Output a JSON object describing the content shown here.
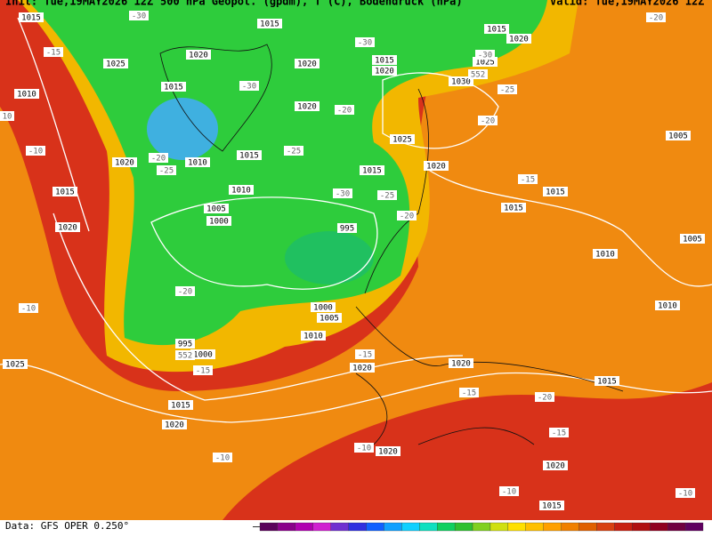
{
  "header": {
    "init": "Init: Tue,19MAY2026 12Z",
    "title": "500 hPa Geopot. (gpdm), T (C), Bodendruck (hPa)",
    "valid": "Valid: Tue,19MAY2026 12Z"
  },
  "footer": {
    "source": "Data: GFS OPER 0.250°"
  },
  "isobar_labels": [
    "1015",
    "1015",
    "1025",
    "1020",
    "1020",
    "1015",
    "1010",
    "1020",
    "1015",
    "1020",
    "1025",
    "1015",
    "1020",
    "1030",
    "1025",
    "1020",
    "1010",
    "1015",
    "1015",
    "1020",
    "1015",
    "1010",
    "1005",
    "1000",
    "995",
    "1020",
    "1015",
    "1015",
    "1010",
    "1005",
    "1005",
    "1010",
    "1000",
    "1005",
    "1010",
    "995",
    "1000",
    "1025",
    "1020",
    "1020",
    "1015",
    "1015",
    "1020",
    "1020",
    "1020",
    "1015"
  ],
  "temperature_labels": [
    "-30",
    "-20",
    "-15",
    "-30",
    "-30",
    "-25",
    "-20",
    "-20",
    "-30",
    "-25",
    "-20",
    "-25",
    "-10",
    "-15",
    "-30",
    "-25",
    "-20",
    "-20",
    "-10",
    "-15",
    "-15",
    "-15",
    "-20",
    "-15",
    "-10",
    "-10",
    "-10",
    "-10",
    "552",
    "552",
    "10"
  ]
}
